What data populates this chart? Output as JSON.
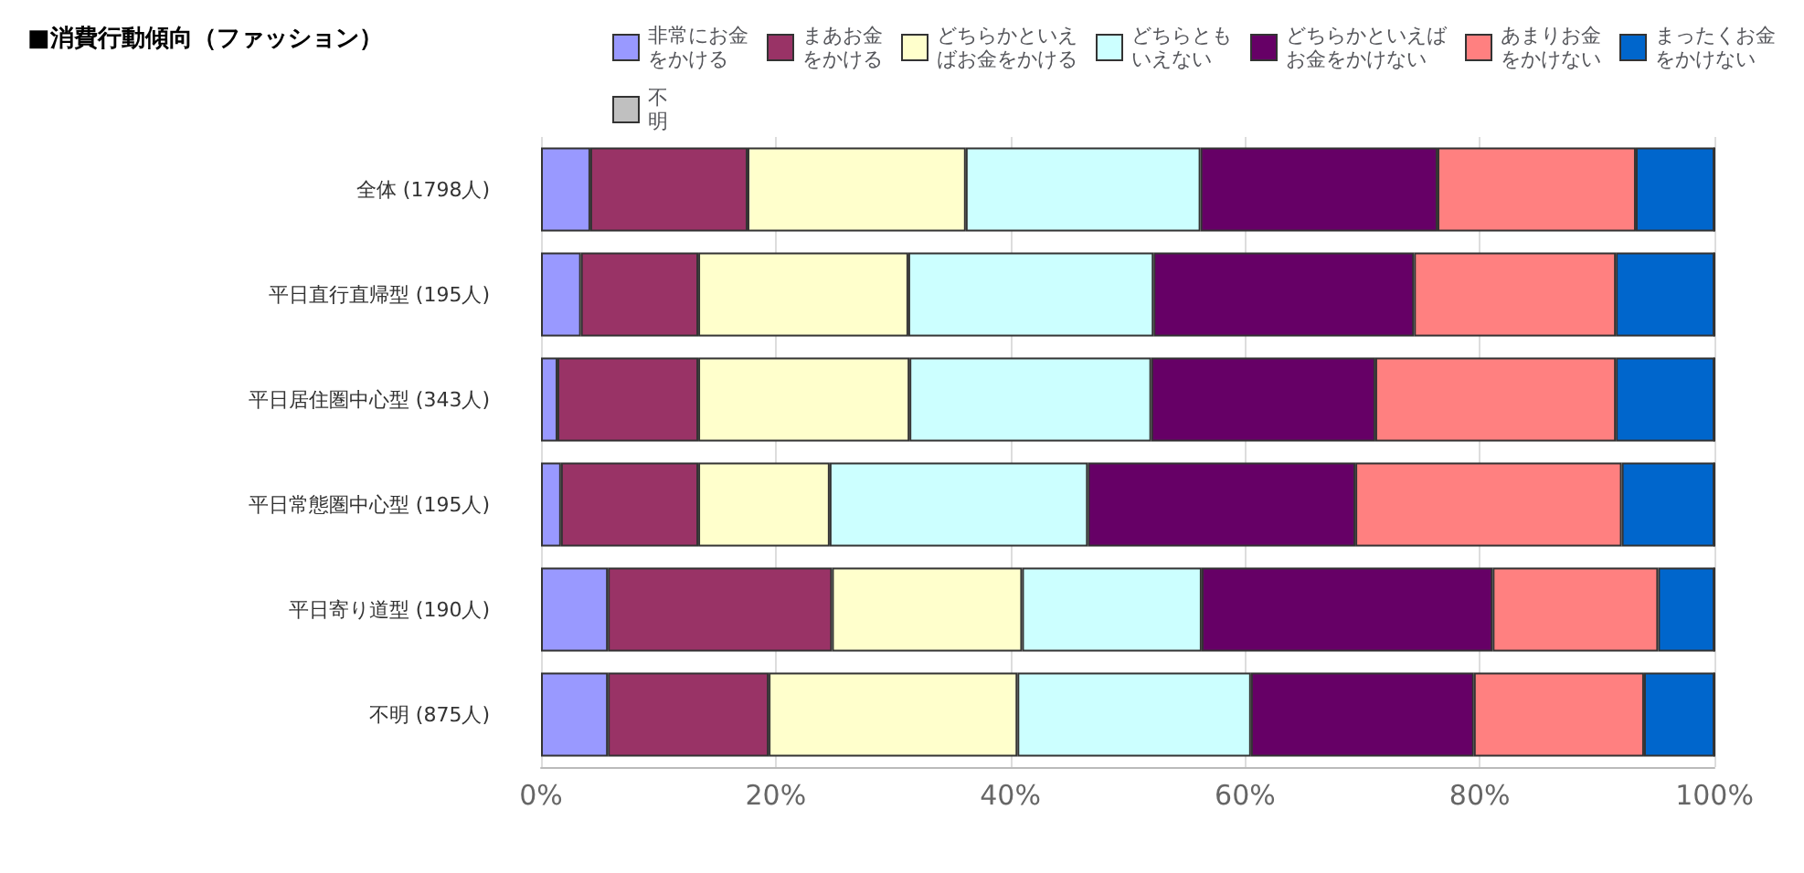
{
  "chart_data": {
    "type": "bar",
    "orientation": "horizontal",
    "stacked": true,
    "title": "■消費行動傾向（ファッション）",
    "categories": [
      "全体 (1798人)",
      "平日直行直帰型 (195人)",
      "平日居住圏中心型 (343人)",
      "平日常態圏中心型 (195人)",
      "平日寄り道型 (190人)",
      "不明 (875人)"
    ],
    "series": [
      {
        "name": "非常にお金をかける",
        "color": "#9999ff",
        "values": [
          4.2,
          3.4,
          1.4,
          1.7,
          5.7,
          5.7
        ]
      },
      {
        "name": "まあお金をかける",
        "color": "#993366",
        "values": [
          13.4,
          10.0,
          12.0,
          11.7,
          19.1,
          13.7
        ]
      },
      {
        "name": "どちらかといえばお金をかける",
        "color": "#ffffcc",
        "values": [
          18.6,
          17.9,
          18.0,
          11.2,
          16.2,
          21.2
        ]
      },
      {
        "name": "どちらともいえない",
        "color": "#ccffff",
        "values": [
          20.0,
          20.9,
          20.6,
          22.0,
          15.3,
          19.9
        ]
      },
      {
        "name": "どちらかといえばお金をかけない",
        "color": "#660066",
        "values": [
          20.2,
          22.2,
          19.1,
          22.8,
          24.8,
          19.0
        ]
      },
      {
        "name": "あまりお金をかけない",
        "color": "#ff8080",
        "values": [
          16.9,
          17.2,
          20.5,
          22.7,
          14.1,
          14.5
        ]
      },
      {
        "name": "まったくお金をかけない",
        "color": "#0066cc",
        "values": [
          6.7,
          8.4,
          8.4,
          7.9,
          4.8,
          6.0
        ]
      },
      {
        "name": "不明",
        "color": "#c0c0c0",
        "values": [
          0,
          0,
          0,
          0,
          0,
          0
        ]
      }
    ],
    "xlim": [
      0,
      100
    ],
    "xticks": [
      {
        "value": 0,
        "label": "0%"
      },
      {
        "value": 20,
        "label": "20%"
      },
      {
        "value": 40,
        "label": "40%"
      },
      {
        "value": 60,
        "label": "60%"
      },
      {
        "value": 80,
        "label": "80%"
      },
      {
        "value": 100,
        "label": "100%"
      }
    ],
    "grid": "x",
    "legend": "top"
  }
}
